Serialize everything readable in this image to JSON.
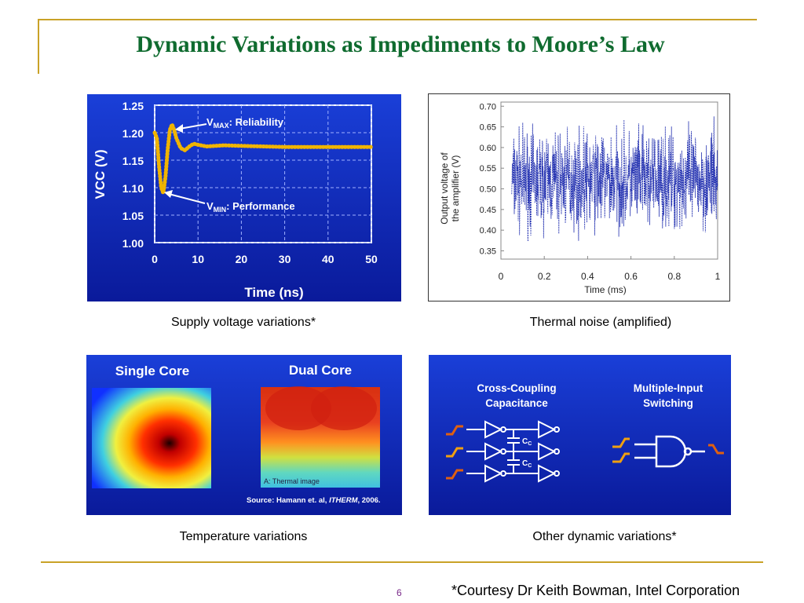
{
  "slide": {
    "title": "Dynamic Variations as Impediments to Moore’s Law",
    "page_number": "6",
    "footnote": "*Courtesy Dr Keith Bowman, Intel Corporation"
  },
  "captions": {
    "top_left": "Supply voltage variations*",
    "top_right": "Thermal noise (amplified)",
    "bottom_left": "Temperature variations",
    "bottom_right": "Other dynamic variations*"
  },
  "vcc_panel": {
    "vmax_label": "V",
    "vmax_sub": "MAX",
    "vmax_text": ": Reliability",
    "vmin_label": "V",
    "vmin_sub": "MIN",
    "vmin_text": ": Performance"
  },
  "temp_panel": {
    "single_core": "Single Core",
    "dual_core": "Dual Core",
    "thermal_label": "A: Thermal image",
    "source_prefix": "Source: Hamann et. al, ",
    "source_italic": "ITHERM",
    "source_suffix": ", 2006."
  },
  "other_panel": {
    "cross_coupling_1": "Cross-Coupling",
    "cross_coupling_2": "Capacitance",
    "multi_input_1": "Multiple-Input",
    "multi_input_2": "Switching",
    "cap_label": "C",
    "cap_sub": "C"
  },
  "chart_data": [
    {
      "type": "line",
      "title": "",
      "xlabel": "Time (ns)",
      "ylabel": "VCC (V)",
      "xlim": [
        0,
        50
      ],
      "ylim": [
        1.0,
        1.25
      ],
      "xticks": [
        "0",
        "10",
        "20",
        "30",
        "40",
        "50"
      ],
      "yticks": [
        "1.00",
        "1.05",
        "1.10",
        "1.15",
        "1.20",
        "1.25"
      ],
      "grid": true,
      "series": [
        {
          "x": [
            0,
            0.5,
            1,
            1.5,
            2,
            2.5,
            3,
            3.5,
            4,
            4.5,
            5,
            6,
            7,
            8,
            9,
            10,
            12,
            14,
            16,
            20,
            25,
            30,
            35,
            40,
            45,
            50
          ],
          "values": [
            1.2,
            1.19,
            1.14,
            1.1,
            1.09,
            1.12,
            1.17,
            1.205,
            1.215,
            1.205,
            1.19,
            1.172,
            1.168,
            1.175,
            1.18,
            1.178,
            1.175,
            1.176,
            1.177,
            1.176,
            1.175,
            1.174,
            1.174,
            1.174,
            1.174,
            1.174
          ]
        }
      ],
      "annotations": [
        "VMAX: Reliability",
        "VMIN: Performance"
      ]
    },
    {
      "type": "line",
      "title": "",
      "xlabel": "Time (ms)",
      "ylabel": "Output voltage of the amplifier (V)",
      "xlim": [
        0,
        1
      ],
      "ylim": [
        0.33,
        0.71
      ],
      "xticks": [
        "0",
        "0.2",
        "0.4",
        "0.6",
        "0.8",
        "1"
      ],
      "yticks": [
        "0.35",
        "0.40",
        "0.45",
        "0.50",
        "0.55",
        "0.60",
        "0.65",
        "0.70"
      ],
      "grid": false,
      "series": [
        {
          "x_range": [
            0.05,
            1.0
          ],
          "mean": 0.52,
          "min": 0.35,
          "max": 0.69
        }
      ]
    }
  ]
}
